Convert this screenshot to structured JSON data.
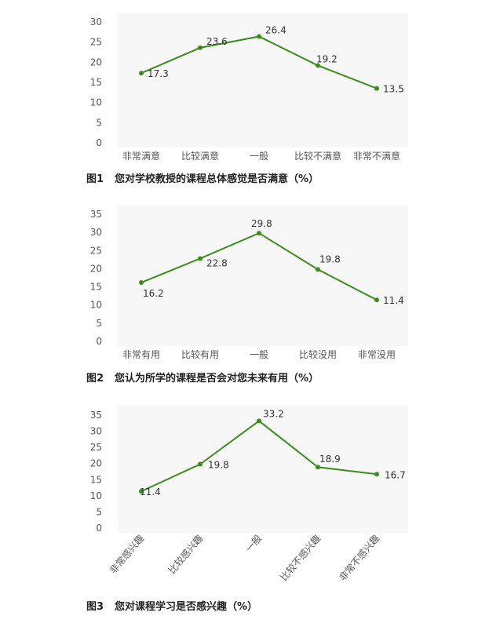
{
  "colors": {
    "line": "#3d8c1e",
    "point": "#3d8c1e",
    "plot_bg": "#f7f7f7"
  },
  "figures": [
    {
      "figure_no": "图1",
      "caption_text": "您对学校教授的课程总体感觉是否满意（%）"
    },
    {
      "figure_no": "图2",
      "caption_text": "您认为所学的课程是否会对您未来有用（%）"
    },
    {
      "figure_no": "图3",
      "caption_text": "您对课程学习是否感兴趣（%）"
    }
  ],
  "chart_data": [
    {
      "type": "line",
      "categories": [
        "非常满意",
        "比较满意",
        "一般",
        "比较不满意",
        "非常不满意"
      ],
      "values": [
        17.3,
        23.6,
        26.4,
        19.2,
        13.5
      ],
      "ylim": [
        0,
        30
      ],
      "yticks": [
        0,
        5,
        10,
        15,
        20,
        25,
        30
      ],
      "grid": false,
      "legend": "none"
    },
    {
      "type": "line",
      "categories": [
        "非常有用",
        "比较有用",
        "一般",
        "比较没用",
        "非常没用"
      ],
      "values": [
        16.2,
        22.8,
        29.8,
        19.8,
        11.4
      ],
      "ylim": [
        0,
        35
      ],
      "yticks": [
        0,
        5,
        10,
        15,
        20,
        25,
        30,
        35
      ],
      "grid": false,
      "legend": "none"
    },
    {
      "type": "line",
      "categories": [
        "非常感兴趣",
        "比较感兴趣",
        "一般",
        "比较不感兴趣",
        "非常不感兴趣"
      ],
      "values": [
        11.4,
        19.8,
        33.2,
        18.9,
        16.7
      ],
      "ylim": [
        0,
        35
      ],
      "yticks": [
        0,
        5,
        10,
        15,
        20,
        25,
        30,
        35
      ],
      "grid": false,
      "legend": "none"
    }
  ]
}
